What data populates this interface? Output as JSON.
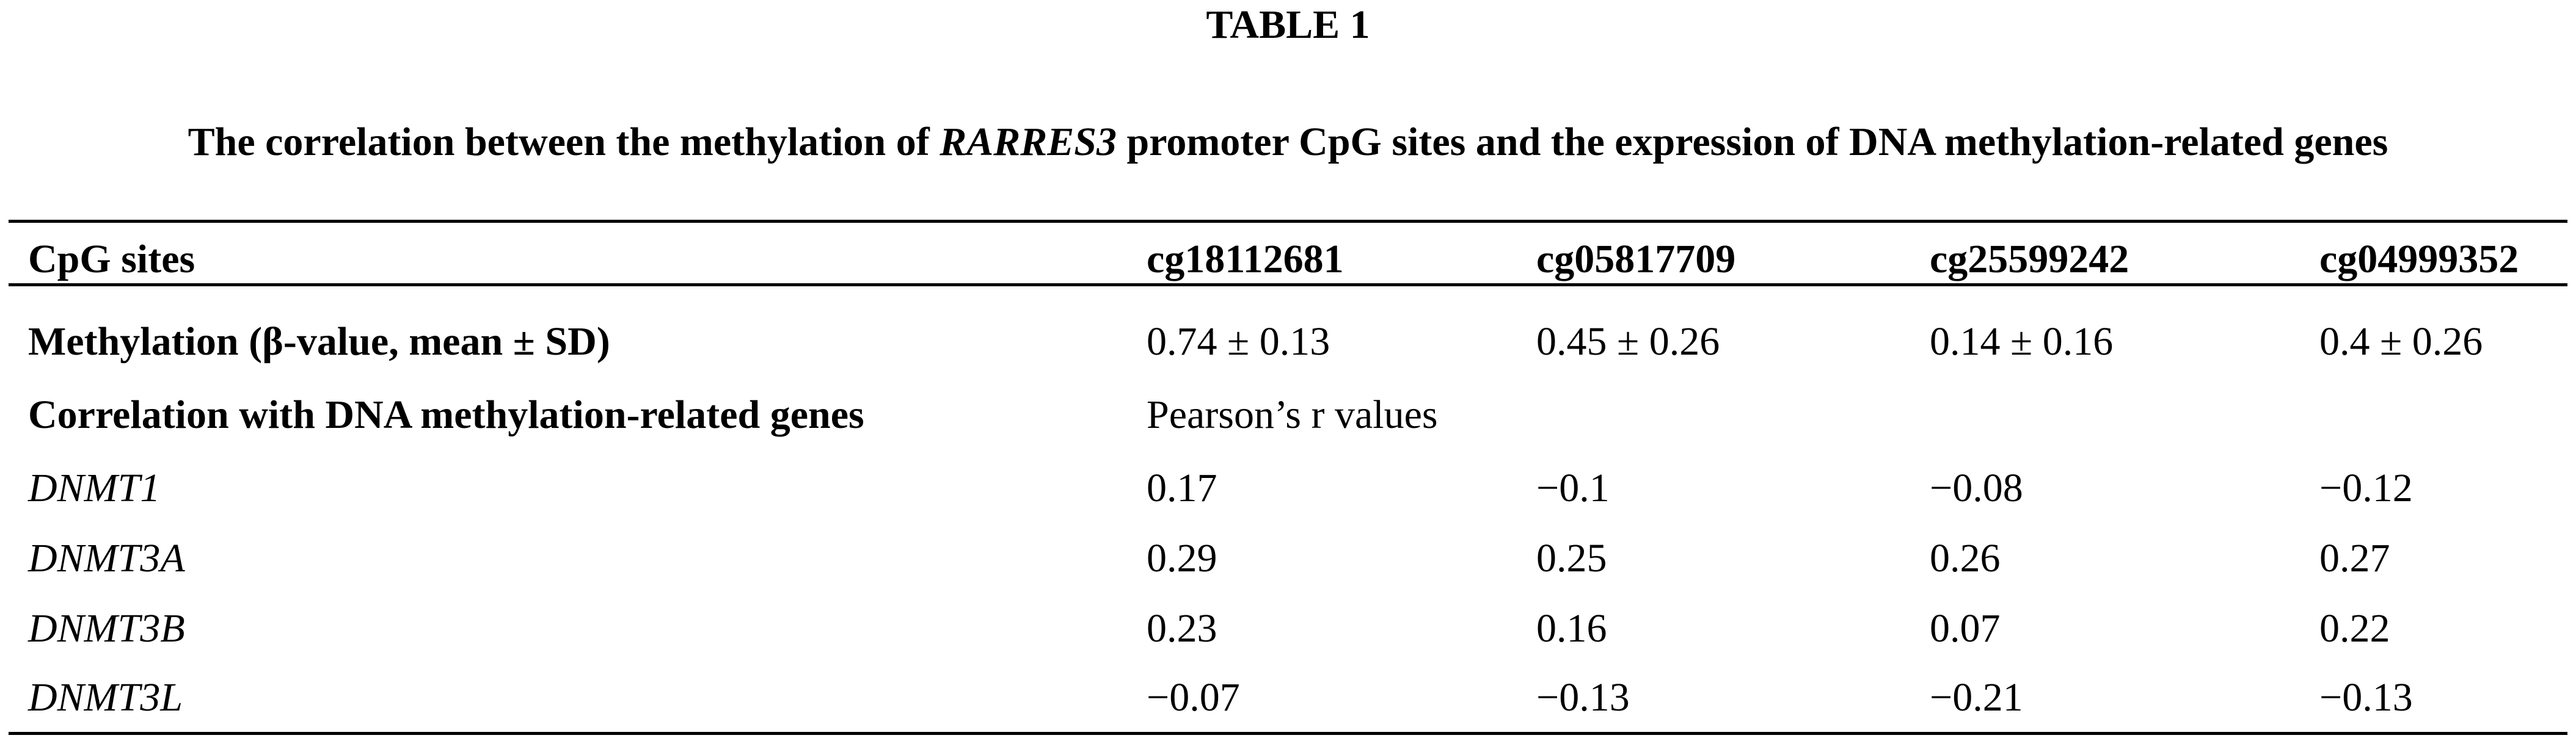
{
  "table_label": "TABLE 1",
  "caption": {
    "before": "The correlation between the methylation of ",
    "gene": "RARRES3",
    "after": " promoter CpG sites and the expression of DNA methylation-related genes"
  },
  "header": [
    "CpG sites",
    "cg18112681",
    "cg05817709",
    "cg25599242",
    "cg04999352"
  ],
  "methylation_row": {
    "label": "Methylation (β-value, mean ± SD)",
    "values": [
      "0.74 ± 0.13",
      "0.45 ± 0.26",
      "0.14 ± 0.16",
      "0.4 ± 0.26"
    ]
  },
  "correlation_row": {
    "label": "Correlation with DNA methylation-related genes",
    "note": "Pearson’s r values"
  },
  "gene_rows": [
    {
      "gene": "DNMT1",
      "values": [
        "0.17",
        "−0.1",
        "−0.08",
        "−0.12"
      ]
    },
    {
      "gene": "DNMT3A",
      "values": [
        "0.29",
        "0.25",
        "0.26",
        "0.27"
      ]
    },
    {
      "gene": "DNMT3B",
      "values": [
        "0.23",
        "0.16",
        "0.07",
        "0.22"
      ]
    },
    {
      "gene": "DNMT3L",
      "values": [
        "−0.07",
        "−0.13",
        "−0.21",
        "−0.13"
      ]
    }
  ]
}
